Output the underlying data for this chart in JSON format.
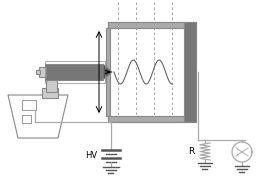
{
  "line_color": "#888888",
  "dark_gray": "#777777",
  "mid_gray": "#aaaaaa",
  "light_gray": "#cccccc",
  "hv_label": "HV",
  "r_label": "R",
  "figsize": [
    2.7,
    1.8
  ],
  "dpi": 100
}
